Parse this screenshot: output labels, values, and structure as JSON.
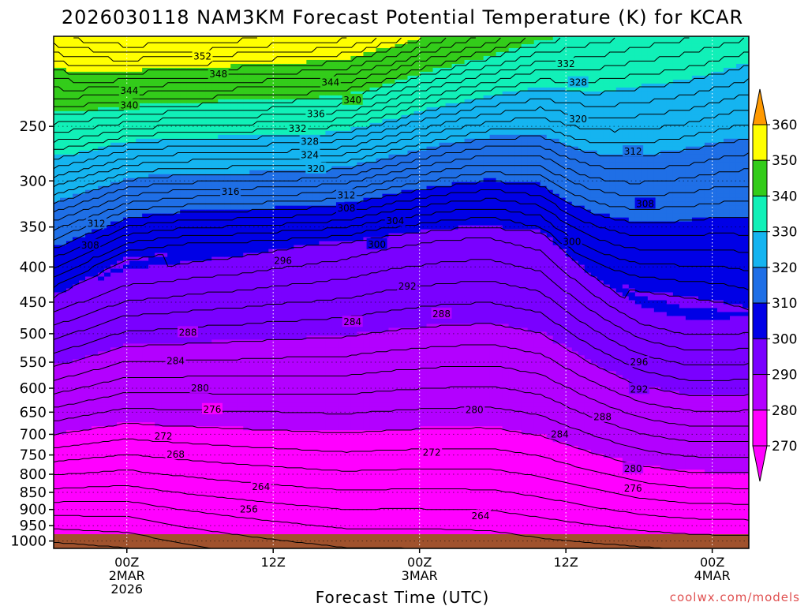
{
  "chart_data": {
    "type": "heatmap",
    "title": "2026030118 NAM3KM Forecast Potential Temperature (K) for KCAR",
    "xlabel": "Forecast Time (UTC)",
    "ylabel": "",
    "credit": "coolwx.com/models",
    "y_scale": "log-pressure",
    "y_range_hPa": [
      1025,
      185
    ],
    "y_ticks_hPa": [
      250,
      300,
      350,
      400,
      450,
      500,
      550,
      600,
      650,
      700,
      750,
      800,
      850,
      900,
      950,
      1000
    ],
    "x_range_hours": [
      -6,
      51
    ],
    "x_ticks": [
      {
        "hour": 0,
        "lines": [
          "00Z",
          "2MAR",
          "2026"
        ]
      },
      {
        "hour": 12,
        "lines": [
          "12Z"
        ]
      },
      {
        "hour": 24,
        "lines": [
          "00Z",
          "3MAR"
        ]
      },
      {
        "hour": 36,
        "lines": [
          "12Z"
        ]
      },
      {
        "hour": 48,
        "lines": [
          "00Z",
          "4MAR"
        ]
      }
    ],
    "colorbar": {
      "levels": [
        270,
        280,
        290,
        300,
        310,
        320,
        330,
        340,
        350,
        360
      ],
      "colors": [
        "#ff00ff",
        "#b300ff",
        "#7a00ff",
        "#0000e6",
        "#1f6fe6",
        "#15b4f0",
        "#11f0b8",
        "#33cc1a",
        "#ffff00",
        "#ffaa00"
      ],
      "under_color": "#ff00ff",
      "over_color": "#ff9900"
    },
    "contour_interval_K": 2,
    "contour_labels": [
      {
        "value": "352",
        "hour": 6.2,
        "hPa": 198
      },
      {
        "value": "348",
        "hour": 7.5,
        "hPa": 210
      },
      {
        "value": "344",
        "hour": 0.2,
        "hPa": 222
      },
      {
        "value": "340",
        "hour": 0.2,
        "hPa": 233
      },
      {
        "value": "344",
        "hour": 16.7,
        "hPa": 216
      },
      {
        "value": "340",
        "hour": 18.5,
        "hPa": 229
      },
      {
        "value": "336",
        "hour": 15.5,
        "hPa": 240
      },
      {
        "value": "332",
        "hour": 14.0,
        "hPa": 252
      },
      {
        "value": "328",
        "hour": 15.0,
        "hPa": 263
      },
      {
        "value": "324",
        "hour": 15.0,
        "hPa": 275
      },
      {
        "value": "320",
        "hour": 15.5,
        "hPa": 288
      },
      {
        "value": "316",
        "hour": 8.5,
        "hPa": 311
      },
      {
        "value": "312",
        "hour": 18.0,
        "hPa": 315
      },
      {
        "value": "308",
        "hour": 18.0,
        "hPa": 329
      },
      {
        "value": "304",
        "hour": 22.0,
        "hPa": 343
      },
      {
        "value": "312",
        "hour": -2.5,
        "hPa": 346
      },
      {
        "value": "308",
        "hour": -3.0,
        "hPa": 372
      },
      {
        "value": "300",
        "hour": 20.5,
        "hPa": 371
      },
      {
        "value": "296",
        "hour": 12.8,
        "hPa": 392
      },
      {
        "value": "292",
        "hour": 23.0,
        "hPa": 427
      },
      {
        "value": "288",
        "hour": 25.8,
        "hPa": 468
      },
      {
        "value": "284",
        "hour": 18.5,
        "hPa": 481
      },
      {
        "value": "288",
        "hour": 5.0,
        "hPa": 498
      },
      {
        "value": "284",
        "hour": 4.0,
        "hPa": 548
      },
      {
        "value": "280",
        "hour": 6.0,
        "hPa": 600
      },
      {
        "value": "276",
        "hour": 7.0,
        "hPa": 644
      },
      {
        "value": "280",
        "hour": 28.5,
        "hPa": 645
      },
      {
        "value": "272",
        "hour": 3.0,
        "hPa": 705
      },
      {
        "value": "272",
        "hour": 25.0,
        "hPa": 744
      },
      {
        "value": "268",
        "hour": 4.0,
        "hPa": 749
      },
      {
        "value": "264",
        "hour": 11.0,
        "hPa": 834
      },
      {
        "value": "256",
        "hour": 10.0,
        "hPa": 900
      },
      {
        "value": "264",
        "hour": 29.0,
        "hPa": 920
      },
      {
        "value": "332",
        "hour": 36.0,
        "hPa": 203
      },
      {
        "value": "328",
        "hour": 37.0,
        "hPa": 216
      },
      {
        "value": "320",
        "hour": 37.0,
        "hPa": 244
      },
      {
        "value": "312",
        "hour": 41.5,
        "hPa": 272
      },
      {
        "value": "308",
        "hour": 42.5,
        "hPa": 324
      },
      {
        "value": "300",
        "hour": 36.5,
        "hPa": 368
      },
      {
        "value": "296",
        "hour": 42.0,
        "hPa": 550
      },
      {
        "value": "292",
        "hour": 42.0,
        "hPa": 602
      },
      {
        "value": "288",
        "hour": 39.0,
        "hPa": 661
      },
      {
        "value": "284",
        "hour": 35.5,
        "hPa": 700
      },
      {
        "value": "280",
        "hour": 41.5,
        "hPa": 785
      },
      {
        "value": "276",
        "hour": 41.5,
        "hPa": 839
      }
    ]
  }
}
